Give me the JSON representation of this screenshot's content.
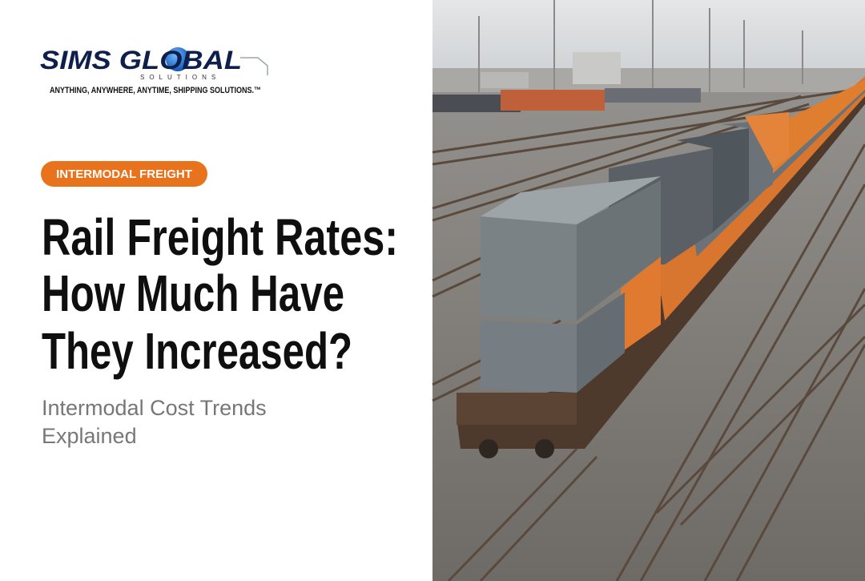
{
  "logo": {
    "name": "SIMS GLOBAL",
    "sub": "SOLUTIONS",
    "tagline": "ANYTHING, ANYWHERE, ANYTIME, SHIPPING SOLUTIONS.™"
  },
  "badge": "INTERMODAL FREIGHT",
  "title_lines": [
    "Rail Freight Rates:",
    "How Much Have",
    "They Increased?"
  ],
  "subtitle_lines": [
    "Intermodal Cost Trends",
    "Explained"
  ]
}
